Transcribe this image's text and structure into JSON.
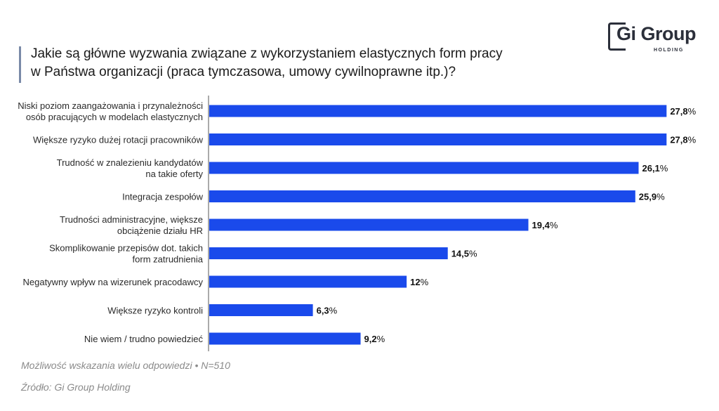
{
  "title": {
    "line1": "Jakie są główne wyzwania związane z wykorzystaniem elastycznych form pracy",
    "line2": "w Państwa organizacji (praca tymczasowa, umowy cywilnoprawne itp.)?"
  },
  "logo": {
    "main": "Gi Group",
    "sub": "HOLDING"
  },
  "colors": {
    "bar": "#1a4aeb",
    "axis": "#555555"
  },
  "chart_data": {
    "type": "bar",
    "orientation": "horizontal",
    "categories": [
      [
        "Niski poziom zaangażowania i przynależności",
        "osób pracujących w modelach elastycznych"
      ],
      [
        "Większe ryzyko dużej rotacji pracowników"
      ],
      [
        "Trudność w znalezieniu kandydatów",
        "na takie oferty"
      ],
      [
        "Integracja zespołów"
      ],
      [
        "Trudności administracyjne, większe",
        "obciążenie działu HR"
      ],
      [
        "Skomplikowanie przepisów dot. takich",
        "form zatrudnienia"
      ],
      [
        "Negatywny wpływ na wizerunek pracodawcy"
      ],
      [
        "Większe ryzyko kontroli"
      ],
      [
        "Nie wiem / trudno powiedzieć"
      ]
    ],
    "values": [
      27.8,
      27.8,
      26.1,
      25.9,
      19.4,
      14.5,
      12,
      6.3,
      9.2
    ],
    "value_labels": [
      "27,8",
      "27,8",
      "26,1",
      "25,9",
      "19,4",
      "14,5",
      "12",
      "6,3",
      "9,2"
    ],
    "unit": "%",
    "xlim": [
      0,
      28
    ]
  },
  "footnote": "Możliwość wskazania wielu odpowiedzi • N=510",
  "source": "Źródło: Gi Group Holding"
}
